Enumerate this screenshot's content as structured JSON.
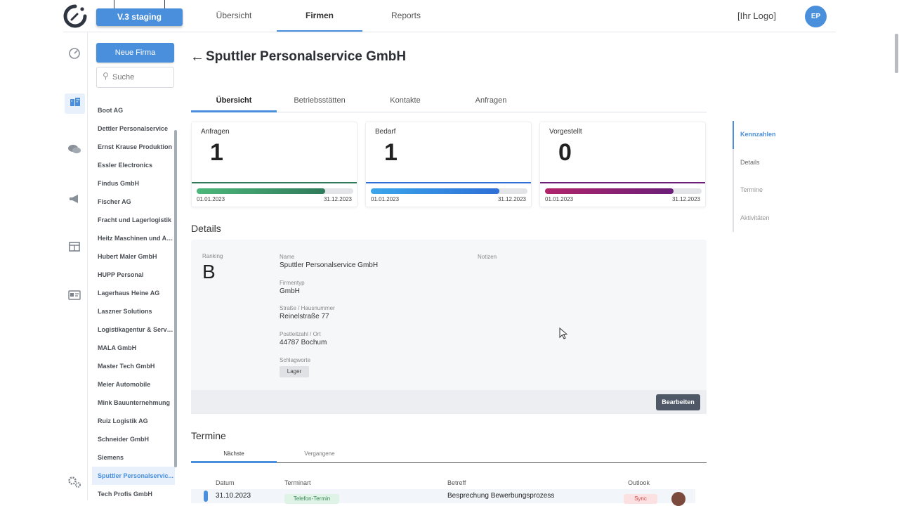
{
  "header": {
    "environment_label": "V.3 staging",
    "nav": [
      "Übersicht",
      "Firmen",
      "Reports"
    ],
    "active_nav": "Firmen",
    "your_logo": "[Ihr Logo]",
    "user_initials": "EP"
  },
  "rail": {
    "icons": [
      "dashboard-icon",
      "companies-icon",
      "chat-icon",
      "megaphone-icon",
      "table-icon",
      "contact-card-icon",
      "settings-icon"
    ],
    "active": "companies-icon"
  },
  "company_list": {
    "new_button": "Neue Firma",
    "search_placeholder": "Suche",
    "items": [
      "Boot AG",
      "Dettler Personalservice",
      "Ernst Krause Produktion",
      "Essler Electronics",
      "Findus GmbH",
      "Fischer AG",
      "Fracht und Lagerlogistik",
      "Heitz Maschinen und An...",
      "Hubert Maler GmbH",
      "HUPP Personal",
      "Lagerhaus Heine AG",
      "Laszner Solutions",
      "Logistikagentur & Service",
      "MALA GmbH",
      "Master Tech GmbH",
      "Meier Automobile",
      "Mink Bauunternehmung",
      "Ruiz Logistik AG",
      "Schneider GmbH",
      "Siemens",
      "Sputtler Personalservic...",
      "Tech Profis GmbH"
    ],
    "selected_index": 20
  },
  "page": {
    "back_arrow": "←",
    "title": "Sputtler Personalservice GmbH",
    "tabs": [
      "Übersicht",
      "Betriebsstätten",
      "Kontakte",
      "Anfragen"
    ],
    "active_tab": "Übersicht"
  },
  "kpis": [
    {
      "label": "Anfragen",
      "value": "1",
      "progress": 0.82,
      "color": "#4cb87a",
      "color2": "#2f7a5a",
      "start": "01.01.2023",
      "end": "31.12.2023"
    },
    {
      "label": "Bedarf",
      "value": "1",
      "progress": 0.82,
      "color": "#3aa6ea",
      "color2": "#2d6fd6",
      "start": "01.01.2023",
      "end": "31.12.2023"
    },
    {
      "label": "Vorgestellt",
      "value": "0",
      "progress": 0.82,
      "color": "#b0246b",
      "color2": "#6b1f78",
      "start": "01.01.2023",
      "end": "31.12.2023"
    }
  ],
  "details": {
    "heading": "Details",
    "ranking_label": "Ranking",
    "ranking_value": "B",
    "name_label": "Name",
    "name_value": "Sputtler Personalservice GmbH",
    "type_label": "Firmentyp",
    "type_value": "GmbH",
    "street_label": "Straße / Hausnummer",
    "street_value": "Reinelstraße 77",
    "city_label": "Postleitzahl / Ort",
    "city_value": "44787 Bochum",
    "tags_label": "Schlagworte",
    "tags": [
      "Lager"
    ],
    "notes_label": "Notizen",
    "edit_button": "Bearbeiten"
  },
  "appointments": {
    "heading": "Termine",
    "tabs": [
      "Nächste",
      "Vergangene"
    ],
    "active_tab": "Nächste",
    "columns": [
      "Datum",
      "Terminart",
      "Betreff",
      "Outlook"
    ],
    "rows": [
      {
        "date": "31.10.2023",
        "type": "Telefon-Termin",
        "subject": "Besprechung Bewerbungsprozess",
        "outlook": "Sync"
      }
    ]
  },
  "anchors": {
    "items": [
      "Kennzahlen",
      "Details",
      "Termine",
      "Aktivitäten"
    ],
    "active": "Kennzahlen"
  }
}
